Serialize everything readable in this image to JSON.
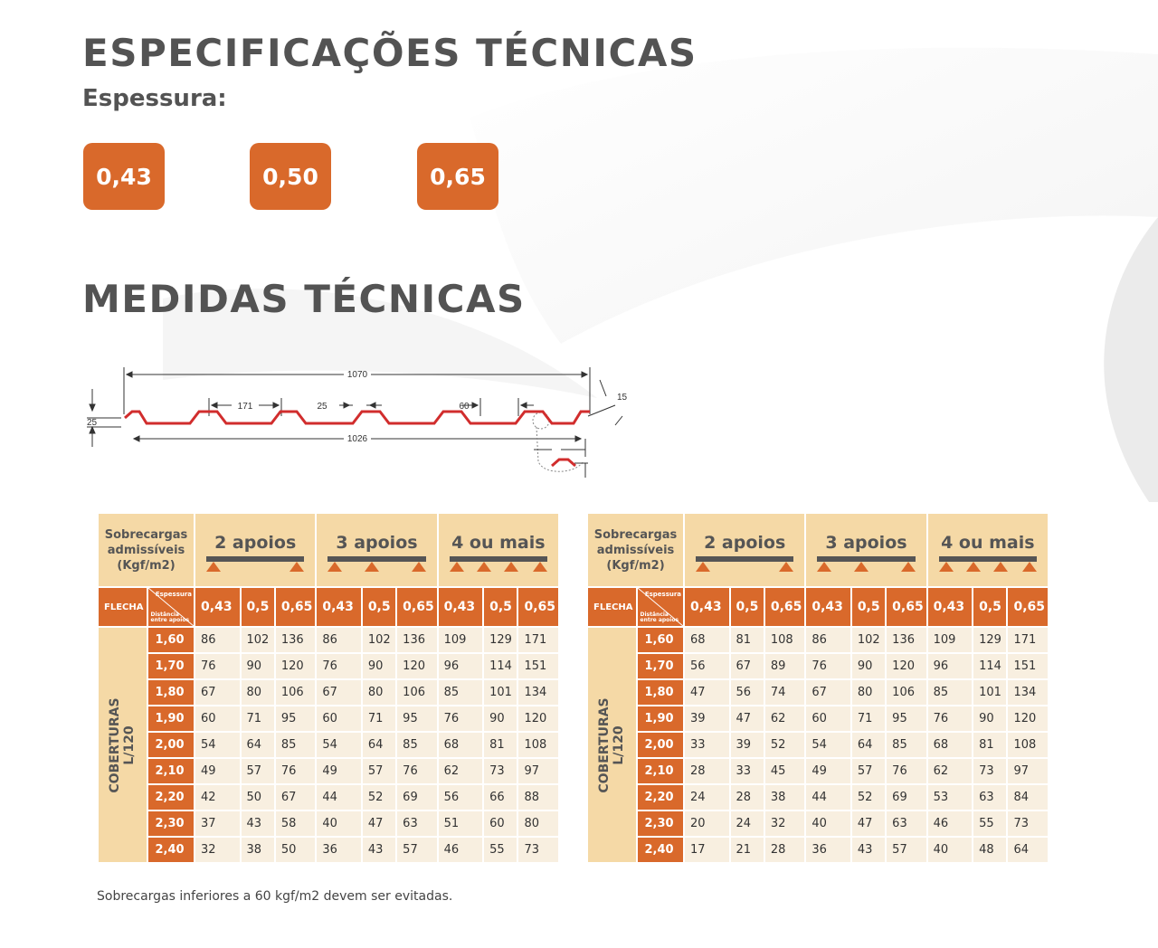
{
  "spec_title": "ESPECIFICAÇÕES TÉCNICAS",
  "espessura_label": "Espessura:",
  "thickness_options": [
    "0,43",
    "0,50",
    "0,65"
  ],
  "medidas_title": "MEDIDAS TÉCNICAS",
  "profile": {
    "total_width": "1070",
    "useful_width": "1026",
    "height": "25",
    "crest_width": "171",
    "rib_gap": "25",
    "valley": "60",
    "overlap": "15"
  },
  "tables": [
    {
      "header_label": [
        "Sobrecargas",
        "admissíveis",
        "(Kgf/m2)"
      ],
      "groups": [
        "2 apoios",
        "3 apoios",
        "4 ou mais"
      ],
      "flecha_label": "FLECHA",
      "diag_top": "Espessura",
      "diag_bottom": [
        "Distância",
        "entre apoios"
      ],
      "sub_cols": [
        "0,43",
        "0,5",
        "0,65",
        "0,43",
        "0,5",
        "0,65",
        "0,43",
        "0,5",
        "0,65"
      ],
      "side_label": [
        "COBERTURAS",
        "L/120"
      ],
      "rows": [
        {
          "dist": "1,60",
          "vals": [
            "86",
            "102",
            "136",
            "86",
            "102",
            "136",
            "109",
            "129",
            "171"
          ]
        },
        {
          "dist": "1,70",
          "vals": [
            "76",
            "90",
            "120",
            "76",
            "90",
            "120",
            "96",
            "114",
            "151"
          ]
        },
        {
          "dist": "1,80",
          "vals": [
            "67",
            "80",
            "106",
            "67",
            "80",
            "106",
            "85",
            "101",
            "134"
          ]
        },
        {
          "dist": "1,90",
          "vals": [
            "60",
            "71",
            "95",
            "60",
            "71",
            "95",
            "76",
            "90",
            "120"
          ]
        },
        {
          "dist": "2,00",
          "vals": [
            "54",
            "64",
            "85",
            "54",
            "64",
            "85",
            "68",
            "81",
            "108"
          ]
        },
        {
          "dist": "2,10",
          "vals": [
            "49",
            "57",
            "76",
            "49",
            "57",
            "76",
            "62",
            "73",
            "97"
          ]
        },
        {
          "dist": "2,20",
          "vals": [
            "42",
            "50",
            "67",
            "44",
            "52",
            "69",
            "56",
            "66",
            "88"
          ]
        },
        {
          "dist": "2,30",
          "vals": [
            "37",
            "43",
            "58",
            "40",
            "47",
            "63",
            "51",
            "60",
            "80"
          ]
        },
        {
          "dist": "2,40",
          "vals": [
            "32",
            "38",
            "50",
            "36",
            "43",
            "57",
            "46",
            "55",
            "73"
          ]
        }
      ]
    },
    {
      "header_label": [
        "Sobrecargas",
        "admissíveis",
        "(Kgf/m2)"
      ],
      "groups": [
        "2 apoios",
        "3 apoios",
        "4 ou mais"
      ],
      "flecha_label": "FLECHA",
      "diag_top": "Espessura",
      "diag_bottom": [
        "Distância",
        "entre apoios"
      ],
      "sub_cols": [
        "0,43",
        "0,5",
        "0,65",
        "0,43",
        "0,5",
        "0,65",
        "0,43",
        "0,5",
        "0,65"
      ],
      "side_label": [
        "COBERTURAS",
        "L/120"
      ],
      "rows": [
        {
          "dist": "1,60",
          "vals": [
            "68",
            "81",
            "108",
            "86",
            "102",
            "136",
            "109",
            "129",
            "171"
          ]
        },
        {
          "dist": "1,70",
          "vals": [
            "56",
            "67",
            "89",
            "76",
            "90",
            "120",
            "96",
            "114",
            "151"
          ]
        },
        {
          "dist": "1,80",
          "vals": [
            "47",
            "56",
            "74",
            "67",
            "80",
            "106",
            "85",
            "101",
            "134"
          ]
        },
        {
          "dist": "1,90",
          "vals": [
            "39",
            "47",
            "62",
            "60",
            "71",
            "95",
            "76",
            "90",
            "120"
          ]
        },
        {
          "dist": "2,00",
          "vals": [
            "33",
            "39",
            "52",
            "54",
            "64",
            "85",
            "68",
            "81",
            "108"
          ]
        },
        {
          "dist": "2,10",
          "vals": [
            "28",
            "33",
            "45",
            "49",
            "57",
            "76",
            "62",
            "73",
            "97"
          ]
        },
        {
          "dist": "2,20",
          "vals": [
            "24",
            "28",
            "38",
            "44",
            "52",
            "69",
            "53",
            "63",
            "84"
          ]
        },
        {
          "dist": "2,30",
          "vals": [
            "20",
            "24",
            "32",
            "40",
            "47",
            "63",
            "46",
            "55",
            "73"
          ]
        },
        {
          "dist": "2,40",
          "vals": [
            "17",
            "21",
            "28",
            "36",
            "43",
            "57",
            "40",
            "48",
            "64"
          ]
        }
      ]
    }
  ],
  "footnote": "Sobrecargas inferiores a 60 kgf/m2 devem ser evitadas."
}
